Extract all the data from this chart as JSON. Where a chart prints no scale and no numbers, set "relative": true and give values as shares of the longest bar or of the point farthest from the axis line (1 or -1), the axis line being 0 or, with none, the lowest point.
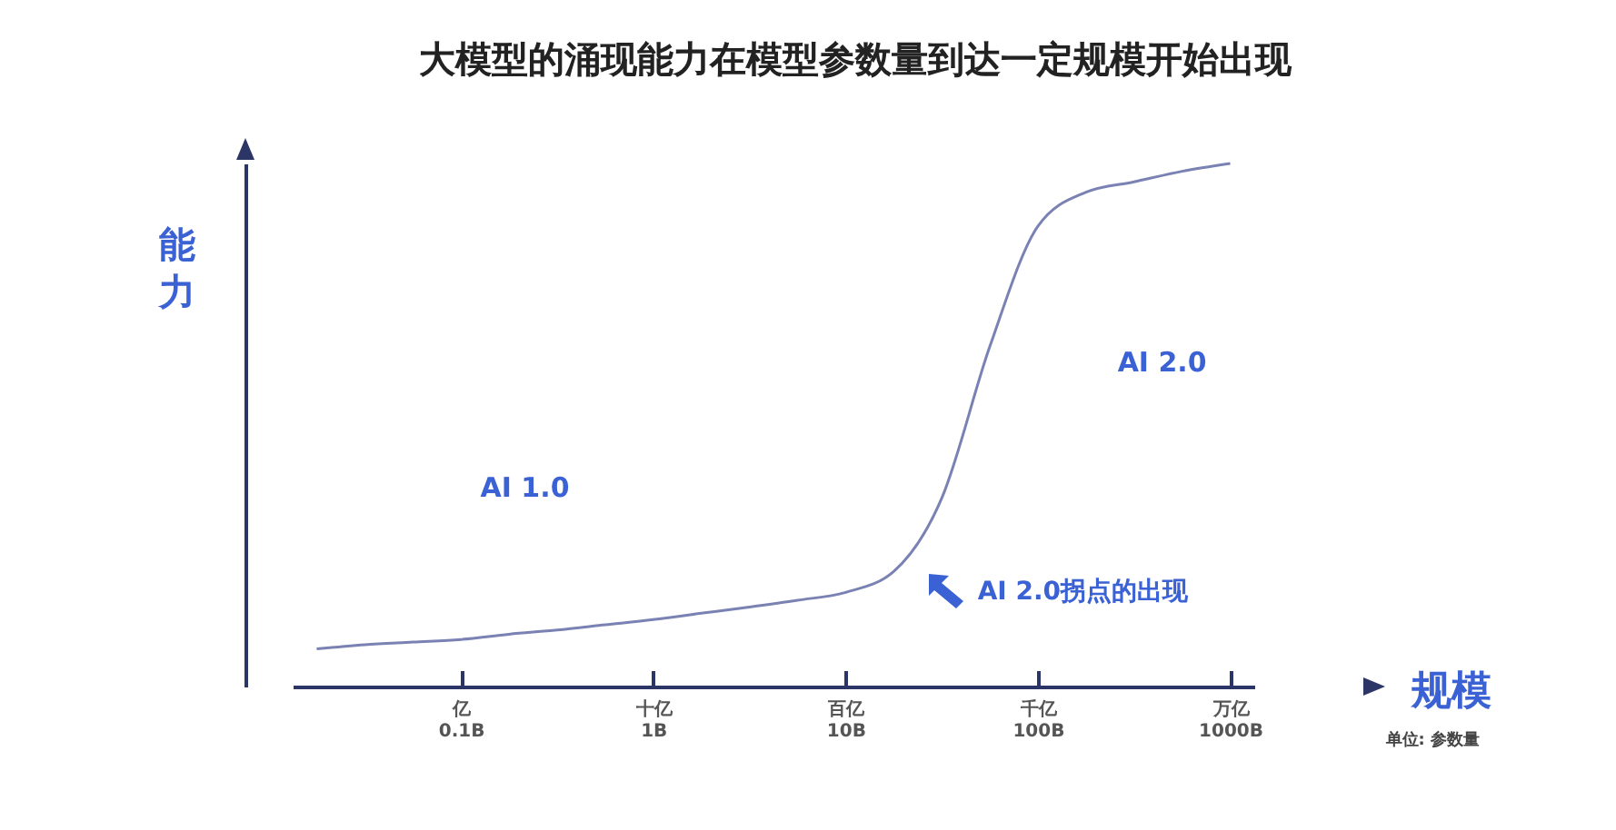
{
  "chart_data": {
    "type": "line",
    "title": "大模型的涌现能力在模型参数量到达一定规模开始出现",
    "xlabel": "规模",
    "ylabel": "能力",
    "relative": true,
    "categories": [
      null,
      null,
      null,
      "亿\n0.1B",
      null,
      null,
      null,
      "十亿\n1B",
      null,
      null,
      null,
      "百亿\n10B",
      null,
      null,
      null,
      "千亿\n100B",
      null,
      null,
      null,
      "万亿\n1000B"
    ],
    "grid": false,
    "legend": false,
    "marker": "none",
    "line_style": "solid",
    "annotations": [
      "AI 1.0",
      "AI 2.0",
      "AI 2.0拐点的出现",
      "单位: 参数量"
    ],
    "series": [
      {
        "color": "#7a82b4",
        "values": [
          0.072,
          0.08,
          0.085,
          0.09,
          0.1,
          0.108,
          0.118,
          0.128,
          0.14,
          0.152,
          0.165,
          0.18,
          0.22,
          0.36,
          0.65,
          0.88,
          0.945,
          0.965,
          0.985,
          1
        ]
      }
    ]
  }
}
